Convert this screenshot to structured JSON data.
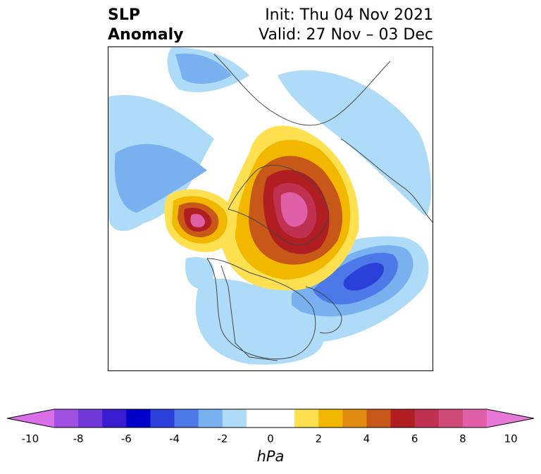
{
  "header": {
    "variable_line1": "SLP",
    "variable_line2": "Anomaly",
    "init_text": "Init: Thu 04 Nov 2021",
    "valid_text": "Valid: 27 Nov – 03 Dec"
  },
  "map": {
    "projection": "north-polar-stereographic",
    "region": "Northern Hemisphere (North America, Arctic, Eurasia)",
    "features": [
      {
        "kind": "positive-anomaly",
        "location": "Arctic / Greenland / north Eurasia",
        "peak_hPa": 10
      },
      {
        "kind": "positive-anomaly",
        "location": "Gulf of Alaska",
        "peak_hPa": 10
      },
      {
        "kind": "negative-anomaly",
        "location": "North Atlantic east of Newfoundland",
        "peak_hPa": -6
      },
      {
        "kind": "negative-anomaly",
        "location": "North Pacific",
        "peak_hPa": -3
      },
      {
        "kind": "negative-anomaly",
        "location": "Northern Europe / Scandinavia",
        "peak_hPa": -2
      }
    ]
  },
  "colorbar": {
    "unit": "hPa",
    "min": -10,
    "max": 10,
    "step": 1,
    "tick_labels": [
      "-10",
      "-8",
      "-6",
      "-4",
      "-2",
      "0",
      "2",
      "4",
      "6",
      "8",
      "10"
    ],
    "colors": [
      "#d96ee8",
      "#a050e0",
      "#7038d8",
      "#3a1cd0",
      "#0000c8",
      "#2a40d8",
      "#4c78e8",
      "#78b0f0",
      "#aedcf8",
      "#ffffff",
      "#ffffff",
      "#ffe050",
      "#f2b800",
      "#e08a10",
      "#c85818",
      "#b01e22",
      "#c03050",
      "#d04a78",
      "#e060a8",
      "#e878d8"
    ]
  }
}
